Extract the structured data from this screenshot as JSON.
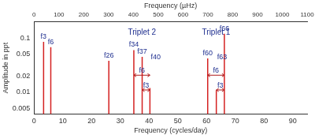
{
  "chart_data": {
    "type": "stem",
    "x": [
      3.3,
      5.8,
      26.0,
      34.7,
      37.6,
      40.3,
      60.4,
      63.4,
      66.2
    ],
    "values": [
      0.085,
      0.068,
      0.038,
      0.06,
      0.045,
      0.012,
      0.042,
      0.011,
      0.12
    ],
    "labels": [
      "f3",
      "f6",
      "f26",
      "f34",
      "f37",
      "f40",
      "f60",
      "f63",
      "f66"
    ],
    "color": "#d42020",
    "xlabel": "Frequency (cycles/day)",
    "x2label": "Frequency (µHz)",
    "ylabel": "Amplitude in ppt",
    "xlim": [
      0,
      95
    ],
    "xticks": [
      0,
      10,
      20,
      30,
      40,
      50,
      60,
      70,
      80,
      90
    ],
    "x2lim": [
      0,
      1100
    ],
    "x2ticks": [
      0,
      100,
      200,
      300,
      400,
      500,
      600,
      700,
      800,
      900,
      1000,
      1100
    ],
    "ylim": [
      0.004,
      0.2
    ],
    "yticks": [
      0.005,
      0.01,
      0.02,
      0.05,
      0.1
    ],
    "log": "y",
    "grid": false,
    "groups": [
      {
        "text": "Triplet 2",
        "members": [
          "f34",
          "f37",
          "f40"
        ]
      },
      {
        "text": "Triplet 1",
        "members": [
          "f60",
          "f63",
          "f66"
        ]
      }
    ],
    "spacings": [
      {
        "label": "f6",
        "from": "f34",
        "to": "f40"
      },
      {
        "label": "f3",
        "from": "f37",
        "to": "f40"
      },
      {
        "label": "f6",
        "from": "f60",
        "to": "f66"
      },
      {
        "label": "f3",
        "from": "f63",
        "to": "f66"
      }
    ]
  }
}
